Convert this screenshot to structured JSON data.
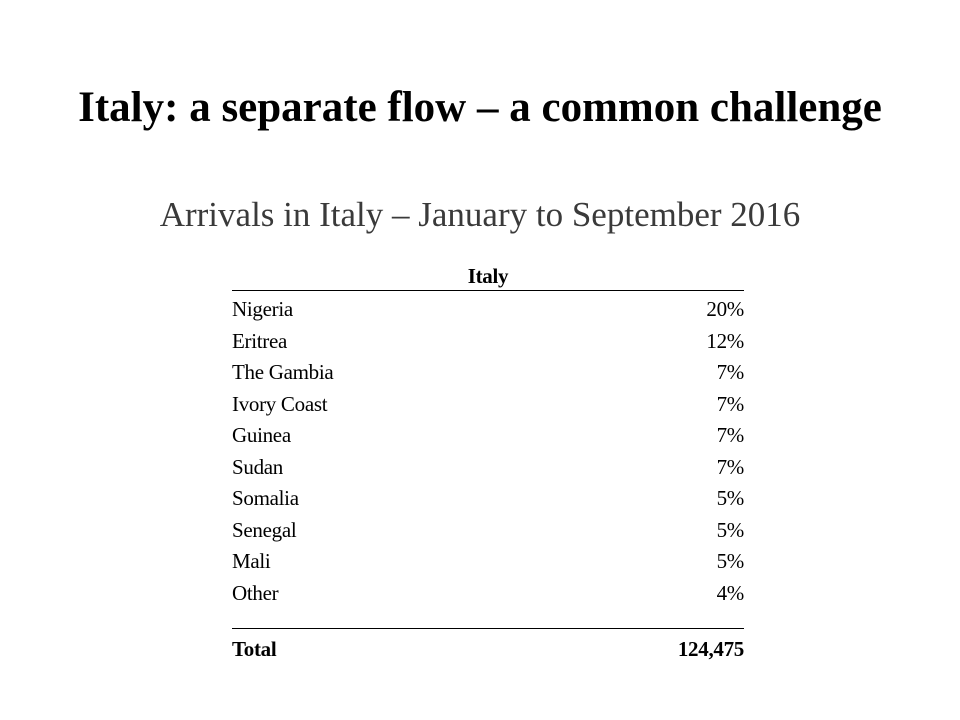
{
  "slide": {
    "title": "Italy: a separate flow – a common challenge",
    "subtitle": "Arrivals in Italy – January to September 2016"
  },
  "table": {
    "header": "Italy",
    "rows": [
      {
        "country": "Nigeria",
        "share": "20%"
      },
      {
        "country": "Eritrea",
        "share": "12%"
      },
      {
        "country": "The Gambia",
        "share": "7%"
      },
      {
        "country": "Ivory Coast",
        "share": "7%"
      },
      {
        "country": "Guinea",
        "share": "7%"
      },
      {
        "country": "Sudan",
        "share": "7%"
      },
      {
        "country": "Somalia",
        "share": "5%"
      },
      {
        "country": "Senegal",
        "share": "5%"
      },
      {
        "country": "Mali",
        "share": "5%"
      },
      {
        "country": "Other",
        "share": "4%"
      }
    ],
    "total_label": "Total",
    "total_value": "124,475"
  }
}
